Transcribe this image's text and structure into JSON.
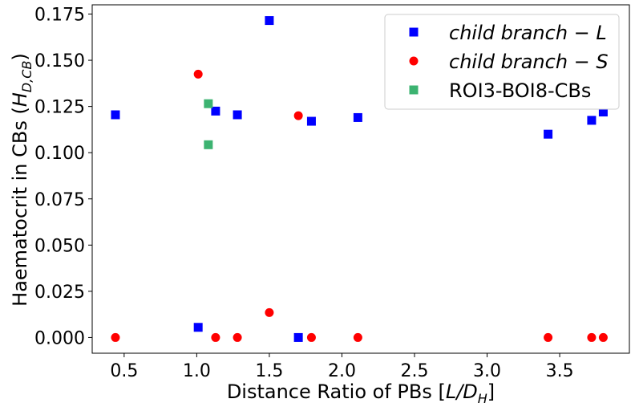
{
  "chart_data": {
    "type": "scatter",
    "xlabel_main": "Distance Ratio of PBs [",
    "xlabel_var": "L/D",
    "xlabel_sub": "H",
    "xlabel_end": "]",
    "ylabel_main": "Haematocrit in CBs (",
    "ylabel_var": "H",
    "ylabel_sub": "D,CB",
    "ylabel_end": ")",
    "xlim": [
      0.28,
      3.98
    ],
    "ylim": [
      -0.0085,
      0.18
    ],
    "x_ticks": [
      0.5,
      1.0,
      1.5,
      2.0,
      2.5,
      3.0,
      3.5
    ],
    "x_tick_labels": [
      "0.5",
      "1.0",
      "1.5",
      "2.0",
      "2.5",
      "3.0",
      "3.5"
    ],
    "y_ticks": [
      0.0,
      0.025,
      0.05,
      0.075,
      0.1,
      0.125,
      0.15,
      0.175
    ],
    "y_tick_labels": [
      "0.000",
      "0.025",
      "0.050",
      "0.075",
      "0.100",
      "0.125",
      "0.150",
      "0.175"
    ],
    "grid": false,
    "legend_position": "top-right",
    "series": [
      {
        "name": "child branch − L",
        "italic": true,
        "marker": "square",
        "color": "#0000ff",
        "points": [
          {
            "x": 0.44,
            "y": 0.1205
          },
          {
            "x": 1.01,
            "y": 0.0055
          },
          {
            "x": 1.13,
            "y": 0.1225
          },
          {
            "x": 1.28,
            "y": 0.1205
          },
          {
            "x": 1.5,
            "y": 0.1715
          },
          {
            "x": 1.7,
            "y": 0.0
          },
          {
            "x": 1.79,
            "y": 0.117
          },
          {
            "x": 2.11,
            "y": 0.119
          },
          {
            "x": 3.42,
            "y": 0.11
          },
          {
            "x": 3.72,
            "y": 0.1175
          },
          {
            "x": 3.8,
            "y": 0.122
          }
        ]
      },
      {
        "name": "child branch − S",
        "italic": true,
        "marker": "circle",
        "color": "#ff0000",
        "points": [
          {
            "x": 0.44,
            "y": 0.0
          },
          {
            "x": 1.01,
            "y": 0.1425
          },
          {
            "x": 1.13,
            "y": 0.0
          },
          {
            "x": 1.28,
            "y": 0.0
          },
          {
            "x": 1.5,
            "y": 0.0135
          },
          {
            "x": 1.7,
            "y": 0.12
          },
          {
            "x": 1.79,
            "y": 0.0
          },
          {
            "x": 2.11,
            "y": 0.0
          },
          {
            "x": 3.42,
            "y": 0.0
          },
          {
            "x": 3.72,
            "y": 0.0
          },
          {
            "x": 3.8,
            "y": 0.0
          }
        ]
      },
      {
        "name": "ROI3-BOI8-CBs",
        "italic": false,
        "marker": "square",
        "color": "#3cb371",
        "points": [
          {
            "x": 1.08,
            "y": 0.1265
          },
          {
            "x": 1.08,
            "y": 0.1043
          }
        ]
      }
    ]
  }
}
